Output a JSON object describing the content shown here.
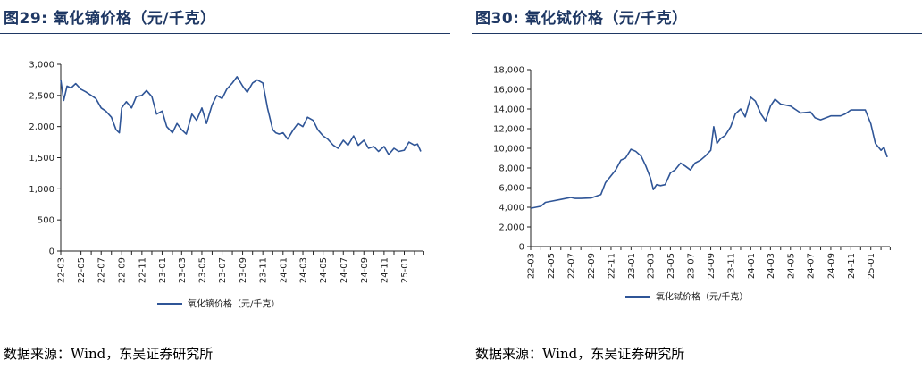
{
  "source_text": "数据来源：Wind，东吴证券研究所",
  "chart_data": [
    {
      "type": "line",
      "title": "图29:  氧化镝价格（元/千克）",
      "xlabel": "",
      "ylabel": "",
      "ylim": [
        0,
        3000
      ],
      "yticks": [
        0,
        500,
        1000,
        1500,
        2000,
        2500,
        3000
      ],
      "ytick_labels": [
        "0",
        "500",
        "1,000",
        "1,500",
        "2,000",
        "2,500",
        "3,000"
      ],
      "x_tick_labels": [
        "22-03",
        "22-05",
        "22-07",
        "22-09",
        "22-11",
        "23-01",
        "23-03",
        "23-05",
        "23-07",
        "23-09",
        "23-11",
        "24-01",
        "24-03",
        "24-05",
        "24-07",
        "24-09",
        "24-11",
        "25-01"
      ],
      "legend_position": "bottom",
      "line_color": "#2f5597",
      "series": [
        {
          "name": "氧化镝价格（元/千克）",
          "x": [
            "2022-03-01",
            "2022-03-10",
            "2022-03-20",
            "2022-04-01",
            "2022-04-15",
            "2022-05-01",
            "2022-05-15",
            "2022-06-01",
            "2022-06-15",
            "2022-07-01",
            "2022-07-15",
            "2022-08-01",
            "2022-08-15",
            "2022-08-25",
            "2022-09-01",
            "2022-09-15",
            "2022-10-01",
            "2022-10-15",
            "2022-11-01",
            "2022-11-15",
            "2022-12-01",
            "2022-12-15",
            "2023-01-01",
            "2023-01-15",
            "2023-02-01",
            "2023-02-15",
            "2023-03-01",
            "2023-03-15",
            "2023-04-01",
            "2023-04-15",
            "2023-05-01",
            "2023-05-15",
            "2023-06-01",
            "2023-06-15",
            "2023-07-01",
            "2023-07-15",
            "2023-08-01",
            "2023-08-15",
            "2023-09-01",
            "2023-09-15",
            "2023-10-01",
            "2023-10-15",
            "2023-11-01",
            "2023-11-15",
            "2023-12-01",
            "2023-12-10",
            "2023-12-20",
            "2024-01-01",
            "2024-01-15",
            "2024-02-01",
            "2024-02-15",
            "2024-03-01",
            "2024-03-15",
            "2024-04-01",
            "2024-04-15",
            "2024-05-01",
            "2024-05-15",
            "2024-06-01",
            "2024-06-15",
            "2024-07-01",
            "2024-07-15",
            "2024-08-01",
            "2024-08-15",
            "2024-09-01",
            "2024-09-15",
            "2024-10-01",
            "2024-10-15",
            "2024-11-01",
            "2024-11-15",
            "2024-12-01",
            "2024-12-15",
            "2025-01-01",
            "2025-01-15",
            "2025-02-01",
            "2025-02-10",
            "2025-02-20"
          ],
          "values": [
            2750,
            2420,
            2650,
            2620,
            2690,
            2600,
            2560,
            2500,
            2450,
            2300,
            2250,
            2150,
            1950,
            1900,
            2300,
            2400,
            2300,
            2480,
            2500,
            2580,
            2480,
            2200,
            2250,
            2000,
            1900,
            2050,
            1950,
            1880,
            2200,
            2100,
            2300,
            2050,
            2350,
            2500,
            2450,
            2600,
            2700,
            2800,
            2650,
            2550,
            2700,
            2750,
            2700,
            2300,
            1950,
            1900,
            1880,
            1900,
            1800,
            1950,
            2050,
            2000,
            2150,
            2100,
            1950,
            1850,
            1800,
            1700,
            1650,
            1780,
            1700,
            1850,
            1700,
            1780,
            1650,
            1680,
            1600,
            1680,
            1550,
            1650,
            1600,
            1620,
            1750,
            1700,
            1720,
            1600
          ]
        }
      ]
    },
    {
      "type": "line",
      "title": "图30:  氧化铽价格（元/千克）",
      "xlabel": "",
      "ylabel": "",
      "ylim": [
        0,
        18000
      ],
      "yticks": [
        0,
        2000,
        4000,
        6000,
        8000,
        10000,
        12000,
        14000,
        16000,
        18000
      ],
      "ytick_labels": [
        "0",
        "2,000",
        "4,000",
        "6,000",
        "8,000",
        "10,000",
        "12,000",
        "14,000",
        "16,000",
        "18,000"
      ],
      "x_tick_labels": [
        "22-03",
        "22-05",
        "22-07",
        "22-09",
        "22-11",
        "23-01",
        "23-03",
        "23-05",
        "23-07",
        "23-09",
        "23-11",
        "24-01",
        "24-03",
        "24-05",
        "24-07",
        "24-09",
        "24-11",
        "25-01"
      ],
      "legend_position": "bottom",
      "line_color": "#2f5597",
      "series": [
        {
          "name": "氧化铽价格（元/千克）",
          "x": [
            "2022-03-01",
            "2022-04-01",
            "2022-04-15",
            "2022-05-01",
            "2022-06-01",
            "2022-07-01",
            "2022-07-15",
            "2022-08-01",
            "2022-09-01",
            "2022-10-01",
            "2022-10-15",
            "2022-11-01",
            "2022-11-15",
            "2022-12-01",
            "2022-12-15",
            "2023-01-01",
            "2023-01-15",
            "2023-02-01",
            "2023-02-15",
            "2023-03-01",
            "2023-03-10",
            "2023-03-20",
            "2023-04-01",
            "2023-04-15",
            "2023-05-01",
            "2023-05-15",
            "2023-06-01",
            "2023-06-15",
            "2023-07-01",
            "2023-07-15",
            "2023-08-01",
            "2023-08-15",
            "2023-09-01",
            "2023-09-10",
            "2023-09-20",
            "2023-10-01",
            "2023-10-15",
            "2023-11-01",
            "2023-11-15",
            "2023-12-01",
            "2023-12-15",
            "2024-01-01",
            "2024-01-15",
            "2024-02-01",
            "2024-02-15",
            "2024-03-01",
            "2024-03-15",
            "2024-04-01",
            "2024-05-01",
            "2024-06-01",
            "2024-07-01",
            "2024-07-15",
            "2024-08-01",
            "2024-09-01",
            "2024-10-01",
            "2024-10-15",
            "2024-11-01",
            "2024-12-01",
            "2024-12-15",
            "2025-01-01",
            "2025-01-15",
            "2025-02-01",
            "2025-02-10",
            "2025-02-20"
          ],
          "values": [
            3900,
            4100,
            4500,
            4600,
            4800,
            5000,
            4900,
            4900,
            4950,
            5300,
            6500,
            7200,
            7800,
            8800,
            9000,
            9900,
            9700,
            9200,
            8200,
            7000,
            5800,
            6300,
            6200,
            6300,
            7500,
            7800,
            8500,
            8200,
            7800,
            8500,
            8800,
            9200,
            9800,
            12200,
            10500,
            11000,
            11300,
            12200,
            13500,
            14000,
            13200,
            15200,
            14800,
            13500,
            12800,
            14300,
            15000,
            14500,
            14300,
            13600,
            13700,
            13100,
            12900,
            13300,
            13300,
            13500,
            13900,
            13900,
            13900,
            12500,
            10500,
            9800,
            10100,
            9100
          ]
        }
      ]
    }
  ]
}
